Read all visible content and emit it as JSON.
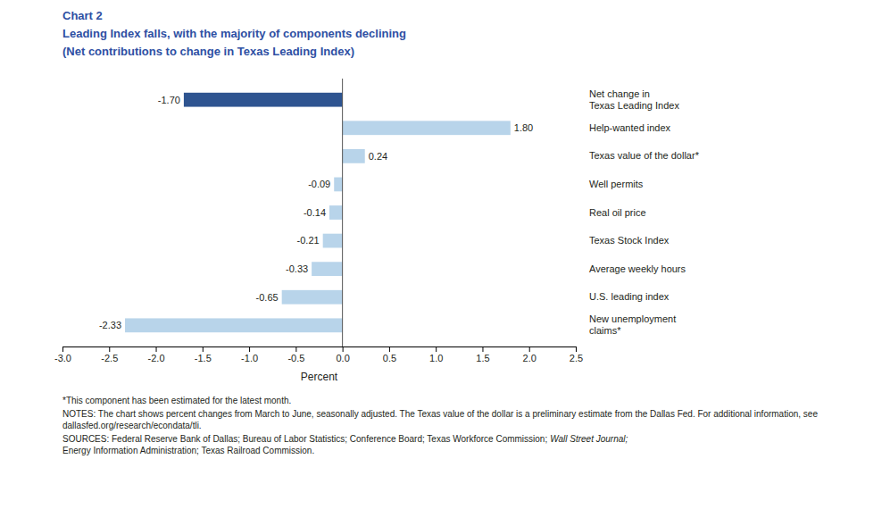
{
  "chart_data": {
    "type": "bar",
    "orientation": "horizontal",
    "title": "Leading Index falls, with the majority of components declining",
    "subtitle": "(Net contributions to change in Texas Leading Index)",
    "annotations": [
      "Chart 2",
      "*This component has been estimated for the latest month.",
      "NOTES: The chart shows percent changes from March to June, seasonally adjusted. The Texas value of the dollar is a preliminary estimate from the Dallas Fed. For additional information, see dallasfed.org/research/econdata/tli.",
      "SOURCES: Federal Reserve Bank of Dallas; Bureau of Labor Statistics; Conference Board; Texas Workforce Commission;",
      "Wall Street Journal;",
      "Energy Information Administration; Texas Railroad Commission."
    ],
    "categories": [
      "Net change in\nTexas Leading Index",
      "Help-wanted index",
      "Texas value of the dollar*",
      "Well permits",
      "Real oil price",
      "Texas Stock Index",
      "Average weekly hours",
      "U.S. leading index",
      "New unemployment\nclaims*"
    ],
    "values": [
      -1.7,
      1.8,
      0.24,
      -0.09,
      -0.14,
      -0.21,
      -0.33,
      -0.65,
      -2.33
    ],
    "value_labels": [
      "-1.70",
      "1.80",
      "0.24",
      "-0.09",
      "-0.14",
      "-0.21",
      "-0.33",
      "-0.65",
      "-2.33"
    ],
    "data_labels": true,
    "colors": [
      "#2e5490",
      "#b8d4ea",
      "#b8d4ea",
      "#b8d4ea",
      "#b8d4ea",
      "#b8d4ea",
      "#b8d4ea",
      "#b8d4ea",
      "#b8d4ea"
    ],
    "xlabel": "Percent",
    "xlim": [
      -3.0,
      2.5
    ],
    "xticks": [
      {
        "value": -3.0,
        "label": "-3.0"
      },
      -2.5,
      {
        "value": -2.0,
        "label": "-2.0"
      },
      -1.5,
      {
        "value": -1.0,
        "label": "-1.0"
      },
      -0.5,
      {
        "value": 0.0,
        "label": "0.0"
      },
      0.5,
      {
        "value": 1.0,
        "label": "1.0"
      },
      1.5,
      {
        "value": 2.0,
        "label": "2.0"
      },
      2.5
    ],
    "grid": false
  }
}
